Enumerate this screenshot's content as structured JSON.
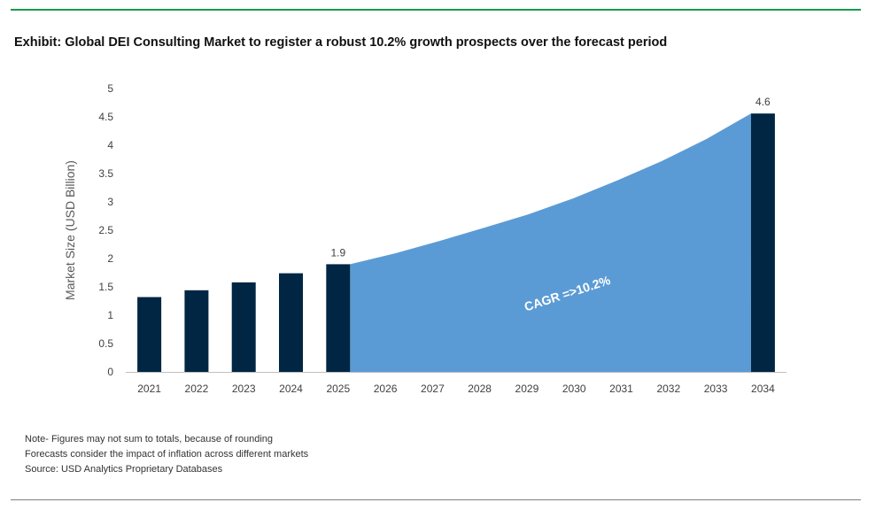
{
  "title": "Exhibit: Global DEI Consulting Market to register a robust 10.2% growth prospects over the forecast period",
  "notes": [
    "Note- Figures may not sum to totals, because of rounding",
    "Forecasts consider the impact of inflation across different markets",
    "Source: USD Analytics Proprietary Databases"
  ],
  "colors": {
    "bar": "#002644",
    "area": "#5b9bd5",
    "rule_top": "#1a9850"
  },
  "chart_data": {
    "type": "bar",
    "categories": [
      "2021",
      "2022",
      "2023",
      "2024",
      "2025",
      "2026",
      "2027",
      "2028",
      "2029",
      "2030",
      "2031",
      "2032",
      "2033",
      "2034"
    ],
    "bars": [
      1.32,
      1.44,
      1.58,
      1.74,
      1.9,
      null,
      null,
      null,
      null,
      null,
      null,
      null,
      null,
      4.56
    ],
    "area": {
      "from": "2025",
      "to": "2034",
      "values": [
        1.9,
        2.09,
        2.31,
        2.54,
        2.78,
        3.06,
        3.38,
        3.72,
        4.11,
        4.56
      ]
    },
    "data_labels": [
      {
        "category": "2025",
        "text": "1.9"
      },
      {
        "category": "2034",
        "text": "4.6"
      }
    ],
    "annotation": "CAGR =>10.2%",
    "ylabel": "Market Size (USD Billion)",
    "xlabel": "",
    "ylim": [
      0,
      5
    ],
    "yticks": [
      "0",
      "0.5",
      "1",
      "1.5",
      "2",
      "2.5",
      "3",
      "3.5",
      "4",
      "4.5",
      "5"
    ],
    "grid": false
  }
}
